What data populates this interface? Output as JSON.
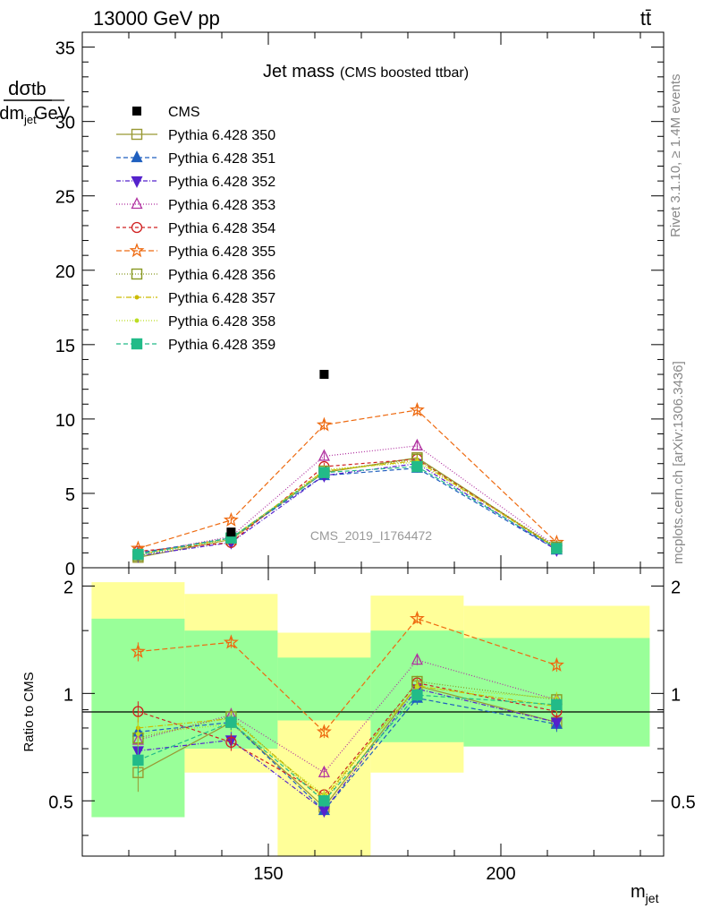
{
  "header": {
    "energy": "13000 GeV pp",
    "process": "tt̄"
  },
  "side_labels": {
    "rivet": "Rivet 3.1.10, ≥ 1.4M events",
    "mcplots": "mcplots.cern.ch [arXiv:1306.3436]"
  },
  "title": {
    "main": "Jet mass",
    "sub": "(CMS boosted ttbar)"
  },
  "watermark": "CMS_2019_I1764472",
  "chart_data": [
    {
      "type": "line",
      "panel": "main",
      "title": "Jet mass (CMS boosted ttbar)",
      "ylabel_num": "dσ",
      "ylabel_den": "dm_jet",
      "ylabel_num_r": "tb",
      "ylabel_den_r": "GeV",
      "xlim": [
        110,
        235
      ],
      "ylim": [
        0,
        36
      ],
      "yticks": [
        0,
        5,
        10,
        15,
        20,
        25,
        30,
        35
      ],
      "ytick_labels": [
        "0",
        "5",
        "10",
        "15",
        "20",
        "25",
        "30",
        "35"
      ],
      "x": [
        122,
        142,
        162,
        182,
        212
      ],
      "data": {
        "name": "CMS",
        "values": [
          null,
          2.4,
          13.0,
          null,
          null
        ]
      },
      "series": [
        {
          "name": "Pythia 6.428 350",
          "color": "#999933",
          "dash": "",
          "marker": "square-open",
          "values": [
            0.7,
            1.9,
            6.4,
            7.4,
            1.3
          ],
          "errors": [
            0.1,
            0.15,
            0.25,
            0.3,
            0.1
          ]
        },
        {
          "name": "Pythia 6.428 351",
          "color": "#1f5fbf",
          "dash": "5,3",
          "marker": "triangle-up",
          "values": [
            1.0,
            2.0,
            6.2,
            6.7,
            1.2
          ],
          "errors": [
            0.1,
            0.15,
            0.2,
            0.3,
            0.1
          ]
        },
        {
          "name": "Pythia 6.428 352",
          "color": "#5522cc",
          "dash": "5,2,1,2",
          "marker": "triangle-down",
          "values": [
            0.8,
            1.7,
            6.2,
            7.0,
            1.2
          ],
          "errors": [
            0.1,
            0.15,
            0.2,
            0.3,
            0.1
          ]
        },
        {
          "name": "Pythia 6.428 353",
          "color": "#b030a0",
          "dash": "1,2",
          "marker": "triangle-open",
          "values": [
            0.9,
            2.1,
            7.5,
            8.2,
            1.4
          ],
          "errors": [
            0.1,
            0.15,
            0.25,
            0.3,
            0.1
          ]
        },
        {
          "name": "Pythia 6.428 354",
          "color": "#d02020",
          "dash": "4,3",
          "marker": "circle-open",
          "values": [
            1.1,
            1.7,
            6.8,
            7.3,
            1.3
          ],
          "errors": [
            0.1,
            0.15,
            0.25,
            0.3,
            0.1
          ]
        },
        {
          "name": "Pythia 6.428 355",
          "color": "#ee6a10",
          "dash": "6,3",
          "marker": "star-open",
          "values": [
            1.3,
            3.2,
            9.6,
            10.6,
            1.7
          ],
          "errors": [
            0.15,
            0.2,
            0.35,
            0.4,
            0.15
          ]
        },
        {
          "name": "Pythia 6.428 356",
          "color": "#889922",
          "dash": "1,2",
          "marker": "square-open",
          "values": [
            0.8,
            2.0,
            6.5,
            7.3,
            1.4
          ],
          "errors": [
            0.1,
            0.15,
            0.25,
            0.3,
            0.1
          ]
        },
        {
          "name": "Pythia 6.428 357",
          "color": "#ccbb00",
          "dash": "6,2,1,2",
          "marker": "dot",
          "values": [
            0.9,
            2.0,
            6.5,
            7.2,
            1.3
          ],
          "errors": [
            0.1,
            0.15,
            0.25,
            0.3,
            0.1
          ]
        },
        {
          "name": "Pythia 6.428 358",
          "color": "#bbdd22",
          "dash": "1,2",
          "marker": "dot",
          "values": [
            0.9,
            1.9,
            6.6,
            7.1,
            1.4
          ],
          "errors": [
            0.1,
            0.15,
            0.25,
            0.3,
            0.1
          ]
        },
        {
          "name": "Pythia 6.428 359",
          "color": "#22bb88",
          "dash": "5,3",
          "marker": "square",
          "values": [
            0.9,
            2.0,
            6.4,
            6.8,
            1.3
          ],
          "errors": [
            0.1,
            0.15,
            0.25,
            0.3,
            0.1
          ]
        }
      ]
    },
    {
      "type": "line",
      "panel": "ratio",
      "ylabel": "Ratio to CMS",
      "xlabel": "m_jet",
      "xlim": [
        110,
        235
      ],
      "ylim": [
        0.35,
        2.25
      ],
      "xticks": [
        150,
        200
      ],
      "xtick_labels": [
        "150",
        "200"
      ],
      "yticks": [
        0.5,
        1,
        2
      ],
      "ytick_labels": [
        "0.5",
        "1",
        "2"
      ],
      "bin_edges": [
        112,
        132,
        152,
        172,
        192,
        232
      ],
      "band_yellow": [
        [
          0.45,
          2.05
        ],
        [
          0.6,
          1.9
        ],
        [
          0.35,
          1.48
        ],
        [
          0.6,
          1.88
        ],
        [
          0.71,
          1.76
        ]
      ],
      "band_green": [
        [
          0.45,
          1.62
        ],
        [
          0.7,
          1.5
        ],
        [
          0.84,
          1.26
        ],
        [
          0.73,
          1.5
        ],
        [
          0.71,
          1.43
        ]
      ],
      "series": [
        {
          "name": "Pythia 6.428 350",
          "values": [
            0.6,
            0.83,
            0.48,
            1.05,
            0.83
          ],
          "errors": [
            0.07,
            0.04,
            0.02,
            0.04,
            0.04
          ]
        },
        {
          "name": "Pythia 6.428 351",
          "values": [
            0.78,
            0.83,
            0.47,
            0.97,
            0.82
          ],
          "errors": [
            0.06,
            0.04,
            0.02,
            0.04,
            0.04
          ]
        },
        {
          "name": "Pythia 6.428 352",
          "values": [
            0.69,
            0.74,
            0.47,
            1.03,
            0.83
          ],
          "errors": [
            0.06,
            0.04,
            0.02,
            0.04,
            0.04
          ]
        },
        {
          "name": "Pythia 6.428 353",
          "values": [
            0.74,
            0.87,
            0.6,
            1.24,
            0.96
          ],
          "errors": [
            0.06,
            0.04,
            0.02,
            0.04,
            0.04
          ]
        },
        {
          "name": "Pythia 6.428 354",
          "values": [
            0.89,
            0.73,
            0.52,
            1.07,
            0.89
          ],
          "errors": [
            0.06,
            0.04,
            0.02,
            0.04,
            0.04
          ]
        },
        {
          "name": "Pythia 6.428 355",
          "values": [
            1.31,
            1.39,
            0.78,
            1.62,
            1.2
          ],
          "errors": [
            0.08,
            0.05,
            0.03,
            0.05,
            0.05
          ]
        },
        {
          "name": "Pythia 6.428 356",
          "values": [
            0.75,
            0.86,
            0.5,
            1.08,
            0.96
          ],
          "errors": [
            0.06,
            0.04,
            0.02,
            0.04,
            0.04
          ]
        },
        {
          "name": "Pythia 6.428 357",
          "values": [
            0.8,
            0.85,
            0.51,
            1.05,
            0.92
          ],
          "errors": [
            0.06,
            0.04,
            0.02,
            0.04,
            0.04
          ]
        },
        {
          "name": "Pythia 6.428 358",
          "values": [
            0.77,
            0.82,
            0.52,
            1.04,
            0.97
          ],
          "errors": [
            0.06,
            0.04,
            0.02,
            0.04,
            0.04
          ]
        },
        {
          "name": "Pythia 6.428 359",
          "values": [
            0.65,
            0.83,
            0.5,
            0.99,
            0.93
          ],
          "errors": [
            0.06,
            0.04,
            0.02,
            0.04,
            0.04
          ]
        }
      ]
    }
  ]
}
